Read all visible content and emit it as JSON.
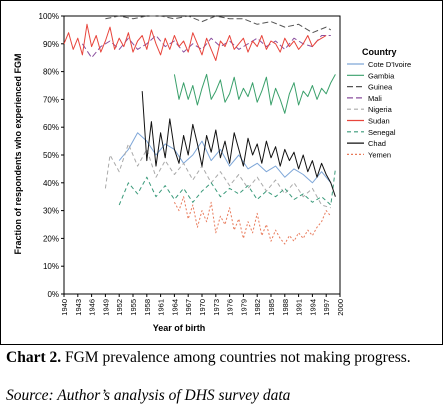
{
  "chart_data": {
    "type": "line",
    "title": "",
    "xlabel": "Year of birth",
    "ylabel": "Fraction of respondents who experienced FGM",
    "xlim": [
      1940,
      2000
    ],
    "ylim": [
      0,
      100
    ],
    "yticks": [
      "0%",
      "10%",
      "20%",
      "30%",
      "40%",
      "50%",
      "60%",
      "70%",
      "80%",
      "90%",
      "100%"
    ],
    "xticks": [
      "1940",
      "1943",
      "1946",
      "1949",
      "1952",
      "1955",
      "1958",
      "1961",
      "1964",
      "1967",
      "1970",
      "1973",
      "1976",
      "1979",
      "1982",
      "1985",
      "1988",
      "1991",
      "1994",
      "1997",
      "2000"
    ],
    "legend_title": "Country",
    "legend_position": "right",
    "grid": false,
    "series": [
      {
        "name": "Cote D'Ivoire",
        "color": "#7fa7d8",
        "dash": "solid",
        "x": [
          1952,
          1954,
          1956,
          1958,
          1960,
          1962,
          1964,
          1966,
          1968,
          1970,
          1972,
          1974,
          1976,
          1978,
          1980,
          1982,
          1984,
          1986,
          1988,
          1990,
          1992,
          1994,
          1996,
          1998
        ],
        "y": [
          48,
          52,
          58,
          55,
          50,
          54,
          52,
          47,
          50,
          55,
          48,
          52,
          46,
          50,
          45,
          47,
          44,
          46,
          42,
          45,
          43,
          40,
          44,
          40
        ]
      },
      {
        "name": "Gambia",
        "color": "#3aa06b",
        "dash": "solid",
        "x": [
          1964,
          1965,
          1966,
          1967,
          1968,
          1969,
          1970,
          1971,
          1972,
          1973,
          1974,
          1975,
          1976,
          1977,
          1978,
          1979,
          1980,
          1981,
          1982,
          1983,
          1984,
          1985,
          1986,
          1987,
          1988,
          1989,
          1990,
          1991,
          1992,
          1993,
          1994,
          1995,
          1996,
          1997,
          1998,
          1999
        ],
        "y": [
          79,
          70,
          76,
          70,
          75,
          68,
          74,
          79,
          70,
          73,
          77,
          69,
          72,
          78,
          70,
          74,
          71,
          76,
          69,
          73,
          78,
          68,
          74,
          70,
          65,
          72,
          76,
          68,
          73,
          71,
          75,
          70,
          74,
          72,
          76,
          79
        ]
      },
      {
        "name": "Guinea",
        "color": "#555555",
        "dash": "6,3",
        "x": [
          1949,
          1952,
          1955,
          1958,
          1961,
          1964,
          1967,
          1970,
          1973,
          1976,
          1979,
          1982,
          1985,
          1988,
          1991,
          1994,
          1997,
          1998
        ],
        "y": [
          99,
          100,
          99,
          100,
          100,
          99,
          100,
          98,
          100,
          99,
          99,
          97,
          98,
          96,
          97,
          94,
          96,
          95
        ]
      },
      {
        "name": "Mali",
        "color": "#8a4f9e",
        "dash": "6,3",
        "x": [
          1944,
          1946,
          1948,
          1950,
          1952,
          1954,
          1956,
          1958,
          1960,
          1962,
          1964,
          1966,
          1968,
          1970,
          1972,
          1974,
          1976,
          1978,
          1980,
          1982,
          1984,
          1986,
          1988,
          1990,
          1992,
          1994,
          1996,
          1998
        ],
        "y": [
          90,
          85,
          89,
          91,
          88,
          92,
          88,
          90,
          93,
          89,
          91,
          87,
          90,
          88,
          92,
          89,
          91,
          88,
          90,
          92,
          89,
          91,
          88,
          92,
          90,
          89,
          93,
          93
        ]
      },
      {
        "name": "Nigeria",
        "color": "#aaaaaa",
        "dash": "4,3",
        "x": [
          1949,
          1950,
          1952,
          1954,
          1956,
          1958,
          1960,
          1962,
          1964,
          1966,
          1968,
          1970,
          1972,
          1974,
          1976,
          1978,
          1980,
          1982,
          1984,
          1986,
          1988,
          1990,
          1992,
          1994,
          1996,
          1998
        ],
        "y": [
          38,
          50,
          44,
          54,
          46,
          52,
          42,
          48,
          43,
          47,
          41,
          46,
          40,
          44,
          39,
          43,
          38,
          42,
          37,
          41,
          36,
          40,
          35,
          38,
          32,
          31
        ]
      },
      {
        "name": "Sudan",
        "color": "#e8453c",
        "dash": "solid",
        "x": [
          1940,
          1941,
          1942,
          1943,
          1944,
          1945,
          1946,
          1947,
          1948,
          1949,
          1950,
          1951,
          1952,
          1953,
          1954,
          1955,
          1956,
          1957,
          1958,
          1959,
          1960,
          1961,
          1962,
          1963,
          1964,
          1965,
          1966,
          1967,
          1968,
          1969,
          1970,
          1971,
          1972,
          1973,
          1974,
          1975,
          1976,
          1977,
          1978,
          1979,
          1980,
          1981,
          1982,
          1983,
          1984,
          1985,
          1986,
          1987,
          1988,
          1989,
          1990,
          1991,
          1992,
          1993,
          1994,
          1995,
          1996,
          1997
        ],
        "y": [
          90,
          94,
          88,
          92,
          86,
          97,
          89,
          93,
          87,
          91,
          96,
          88,
          92,
          89,
          94,
          87,
          91,
          93,
          88,
          95,
          90,
          86,
          92,
          88,
          93,
          89,
          91,
          87,
          94,
          90,
          86,
          92,
          88,
          84,
          91,
          89,
          93,
          88,
          90,
          92,
          87,
          91,
          89,
          93,
          88,
          91,
          90,
          87,
          92,
          89,
          91,
          88,
          90,
          93,
          89,
          91,
          92,
          93
        ]
      },
      {
        "name": "Senegal",
        "color": "#3a9a7a",
        "dash": "4,3",
        "x": [
          1952,
          1954,
          1956,
          1958,
          1960,
          1962,
          1964,
          1966,
          1968,
          1970,
          1972,
          1974,
          1976,
          1978,
          1980,
          1982,
          1984,
          1986,
          1988,
          1990,
          1992,
          1994,
          1996,
          1998,
          1999
        ],
        "y": [
          32,
          40,
          36,
          42,
          35,
          39,
          34,
          38,
          33,
          37,
          40,
          35,
          38,
          36,
          39,
          34,
          37,
          35,
          38,
          34,
          36,
          33,
          35,
          32,
          45
        ]
      },
      {
        "name": "Chad",
        "color": "#111111",
        "dash": "solid",
        "x": [
          1957,
          1958,
          1959,
          1960,
          1961,
          1962,
          1963,
          1964,
          1965,
          1966,
          1967,
          1968,
          1969,
          1970,
          1971,
          1972,
          1973,
          1974,
          1975,
          1976,
          1977,
          1978,
          1979,
          1980,
          1981,
          1982,
          1983,
          1984,
          1985,
          1986,
          1987,
          1988,
          1989,
          1990,
          1991,
          1992,
          1993,
          1994,
          1995,
          1996,
          1997,
          1998,
          1999
        ],
        "y": [
          73,
          48,
          62,
          46,
          58,
          49,
          63,
          52,
          47,
          57,
          50,
          61,
          54,
          46,
          57,
          51,
          59,
          49,
          55,
          47,
          58,
          52,
          46,
          56,
          50,
          54,
          47,
          55,
          49,
          53,
          46,
          52,
          48,
          51,
          45,
          50,
          44,
          48,
          42,
          47,
          43,
          40,
          35
        ]
      },
      {
        "name": "Yemen",
        "color": "#e87a5a",
        "dash": "2,2",
        "x": [
          1964,
          1965,
          1966,
          1967,
          1968,
          1969,
          1970,
          1971,
          1972,
          1973,
          1974,
          1975,
          1976,
          1977,
          1978,
          1979,
          1980,
          1981,
          1982,
          1983,
          1984,
          1985,
          1986,
          1987,
          1988,
          1989,
          1990,
          1991,
          1992,
          1993,
          1994,
          1995,
          1996,
          1997,
          1998
        ],
        "y": [
          33,
          30,
          35,
          27,
          32,
          24,
          30,
          26,
          33,
          22,
          28,
          25,
          31,
          23,
          27,
          20,
          26,
          22,
          29,
          21,
          25,
          19,
          23,
          20,
          18,
          21,
          19,
          22,
          20,
          23,
          21,
          24,
          26,
          30,
          28
        ]
      }
    ]
  },
  "caption": {
    "label": "Chart 2.",
    "text": "FGM prevalence among countries not making progress.",
    "source": "Source: Author’s analysis of DHS survey data"
  }
}
